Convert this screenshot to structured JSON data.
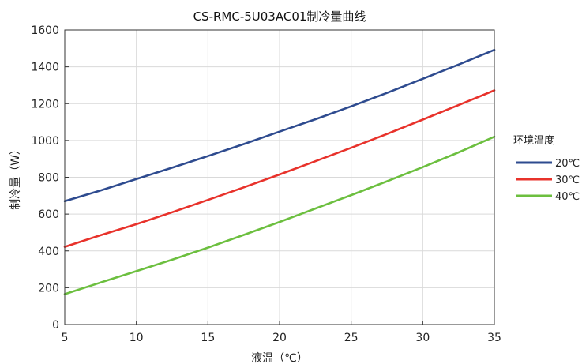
{
  "chart_data": {
    "type": "line",
    "title": "CS-RMC-5U03AC01制冷量曲线",
    "xlabel": "液温（℃）",
    "ylabel": "制冷量（W）",
    "xlim": [
      5,
      35
    ],
    "ylim": [
      0,
      1600
    ],
    "xticks": [
      5,
      10,
      15,
      20,
      25,
      30,
      35
    ],
    "yticks": [
      0,
      200,
      400,
      600,
      800,
      1000,
      1200,
      1400,
      1600
    ],
    "grid": true,
    "legend": {
      "title": "环境温度",
      "placement": "right"
    },
    "x": [
      5,
      7.5,
      10,
      12.5,
      15,
      17.5,
      20,
      22.5,
      25,
      27.5,
      30,
      32.5,
      35
    ],
    "series": [
      {
        "name": "20℃",
        "color": "#2e4b8f",
        "values": [
          670,
          728,
          790,
          852,
          915,
          980,
          1048,
          1115,
          1185,
          1258,
          1335,
          1412,
          1492
        ]
      },
      {
        "name": "30℃",
        "color": "#e8322b",
        "values": [
          422,
          485,
          545,
          610,
          677,
          745,
          815,
          887,
          960,
          1035,
          1113,
          1192,
          1272
        ]
      },
      {
        "name": "40℃",
        "color": "#6cbf3f",
        "values": [
          165,
          228,
          290,
          352,
          418,
          487,
          557,
          630,
          703,
          778,
          855,
          935,
          1020
        ]
      }
    ]
  }
}
